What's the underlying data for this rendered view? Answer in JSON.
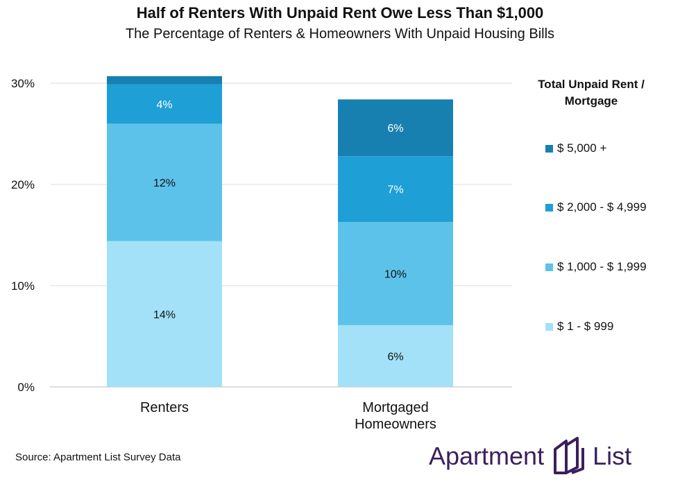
{
  "chart_data": {
    "type": "bar",
    "stacked": true,
    "title": "Half of Renters With Unpaid Rent Owe Less Than $1,000",
    "subtitle": "The Percentage of Renters & Homeowners With Unpaid Housing Bills",
    "categories": [
      "Renters",
      "Mortgaged Homeowners"
    ],
    "category_lines": [
      [
        "Renters"
      ],
      [
        "Mortgaged",
        "Homeowners"
      ]
    ],
    "series": [
      {
        "name": "$ 1 - $ 999",
        "values": [
          14.4,
          6.1
        ],
        "labels": [
          "14%",
          "6%"
        ],
        "color": "#a2e1f7"
      },
      {
        "name": "$ 1,000 - $ 1,999",
        "values": [
          11.6,
          10.2
        ],
        "labels": [
          "12%",
          "10%"
        ],
        "color": "#5cc2ea"
      },
      {
        "name": "$ 2,000 - $ 4,999",
        "values": [
          3.9,
          6.5
        ],
        "labels": [
          "4%",
          "7%"
        ],
        "color": "#1e9fd6"
      },
      {
        "name": "$ 5,000 +",
        "values": [
          0.8,
          5.6
        ],
        "labels": [
          "",
          "6%"
        ],
        "color": "#1880b0"
      }
    ],
    "ylim": [
      0,
      30
    ],
    "yticks": [
      0,
      10,
      20,
      30
    ],
    "ytick_labels": [
      "0%",
      "10%",
      "20%",
      "30%"
    ],
    "grid": true,
    "legend_title": "Total Unpaid Rent / Mortgage",
    "legend_placement": "right"
  },
  "source": "Source: Apartment List Survey Data",
  "logo": {
    "word1": "Apartment",
    "word2": "List",
    "mark_icon": "building-icon",
    "color": "#3b1f5b"
  }
}
